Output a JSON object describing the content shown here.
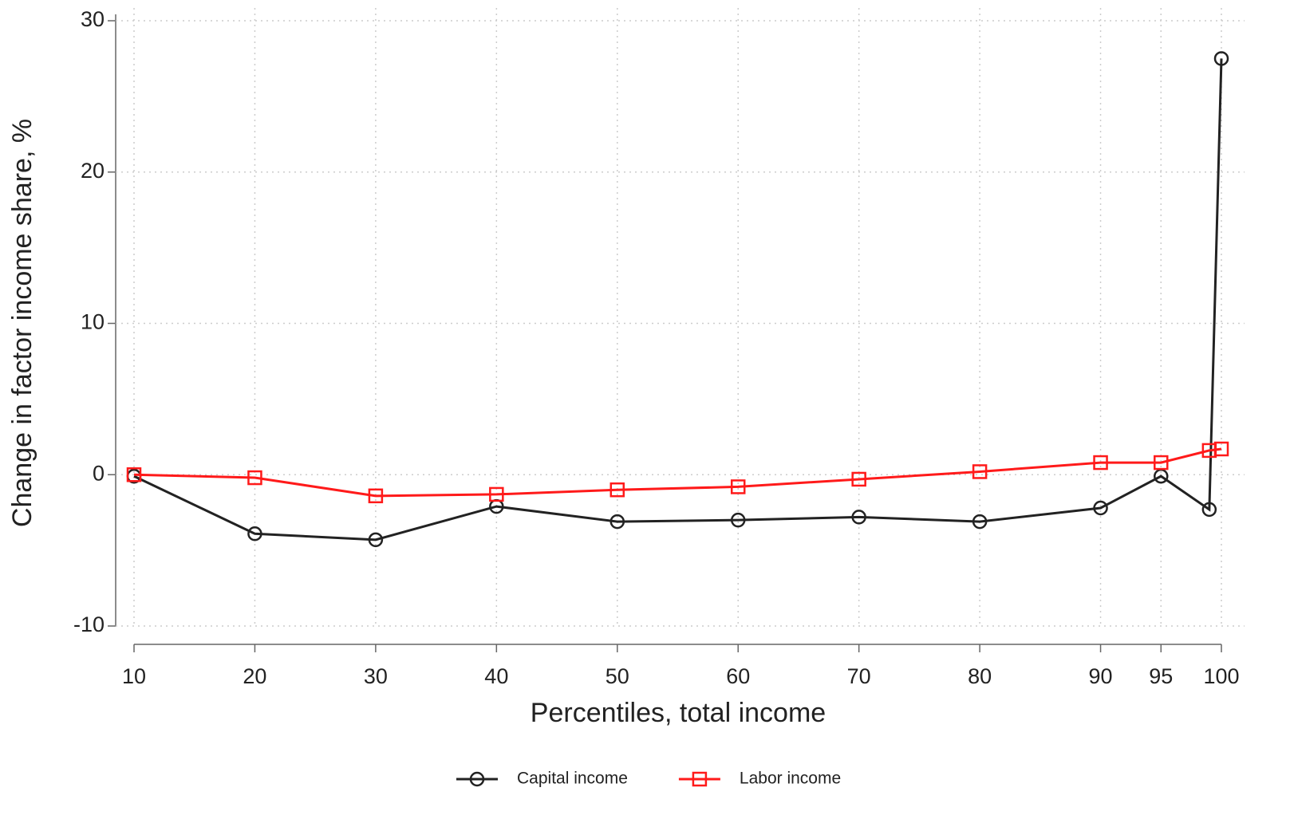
{
  "chart_data": {
    "type": "line",
    "x_label": "Percentiles, total income",
    "y_label": "Change in factor income share, %",
    "x": [
      10,
      20,
      30,
      40,
      50,
      60,
      70,
      80,
      90,
      95,
      99,
      100
    ],
    "series": [
      {
        "name": "Capital income",
        "color": "#222222",
        "marker": "circle",
        "values": [
          -0.1,
          -3.9,
          -4.3,
          -2.1,
          -3.1,
          -3.0,
          -2.8,
          -3.1,
          -2.2,
          -0.1,
          -2.3,
          27.5
        ]
      },
      {
        "name": "Labor income",
        "color": "#ff1a1a",
        "marker": "square",
        "values": [
          0,
          -0.2,
          -1.4,
          -1.3,
          -1.0,
          -0.8,
          -0.3,
          0.2,
          0.8,
          0.8,
          1.6,
          1.7
        ]
      }
    ],
    "xlim": [
      10,
      100
    ],
    "xticks": [
      10,
      20,
      30,
      40,
      50,
      60,
      70,
      80,
      90,
      95,
      100
    ],
    "ylim": [
      -10,
      30
    ],
    "yticks": [
      -10,
      0,
      10,
      20,
      30
    ],
    "grid": true,
    "legend": "bottom"
  }
}
